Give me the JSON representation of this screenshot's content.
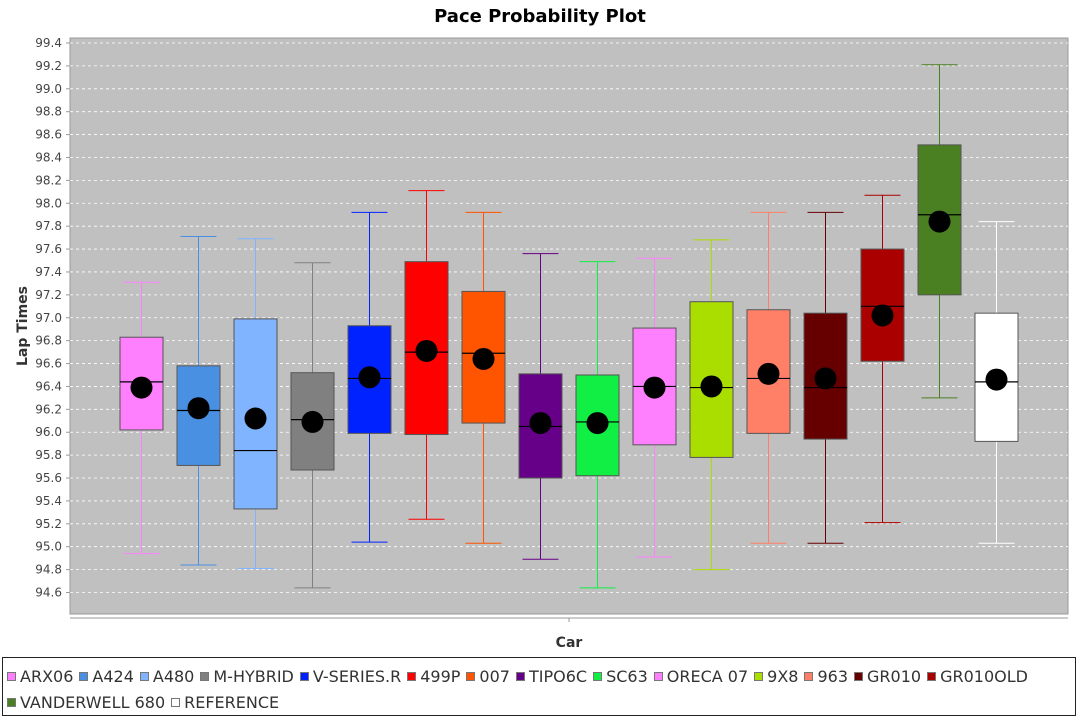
{
  "chart_data": {
    "type": "box",
    "title": "Pace Probability Plot",
    "xlabel": "Car",
    "ylabel": "Lap Times",
    "ylim": [
      94.4,
      99.4
    ],
    "yticks": [
      "94.6",
      "94.8",
      "95.0",
      "95.2",
      "95.4",
      "95.6",
      "95.8",
      "96.0",
      "96.2",
      "96.4",
      "96.6",
      "96.8",
      "97.0",
      "97.2",
      "97.4",
      "97.6",
      "97.8",
      "98.0",
      "98.2",
      "98.4",
      "98.6",
      "98.8",
      "99.0",
      "99.2",
      "99.4"
    ],
    "grid": true,
    "legend_position": "bottom",
    "series": [
      {
        "name": "ARX06",
        "color": "#ff80ff",
        "whisker_low": 94.94,
        "q1": 96.02,
        "median": 96.44,
        "q3": 96.83,
        "whisker_high": 97.31,
        "mean": 96.39
      },
      {
        "name": "A424",
        "color": "#4a90e2",
        "whisker_low": 94.84,
        "q1": 95.71,
        "median": 96.19,
        "q3": 96.58,
        "whisker_high": 97.71,
        "mean": 96.21
      },
      {
        "name": "A480",
        "color": "#80b4ff",
        "whisker_low": 94.81,
        "q1": 95.33,
        "median": 95.84,
        "q3": 96.99,
        "whisker_high": 97.69,
        "mean": 96.12
      },
      {
        "name": "M-HYBRID",
        "color": "#808080",
        "whisker_low": 94.64,
        "q1": 95.67,
        "median": 96.11,
        "q3": 96.52,
        "whisker_high": 97.48,
        "mean": 96.09
      },
      {
        "name": "V-SERIES.R",
        "color": "#0022ff",
        "whisker_low": 95.04,
        "q1": 95.99,
        "median": 96.47,
        "q3": 96.93,
        "whisker_high": 97.92,
        "mean": 96.48
      },
      {
        "name": "499P",
        "color": "#ff0000",
        "whisker_low": 95.24,
        "q1": 95.98,
        "median": 96.7,
        "q3": 97.49,
        "whisker_high": 98.11,
        "mean": 96.71
      },
      {
        "name": "007",
        "color": "#ff5500",
        "whisker_low": 95.03,
        "q1": 96.08,
        "median": 96.69,
        "q3": 97.23,
        "whisker_high": 97.92,
        "mean": 96.64
      },
      {
        "name": "TIPO6C",
        "color": "#660088",
        "whisker_low": 94.89,
        "q1": 95.6,
        "median": 96.05,
        "q3": 96.51,
        "whisker_high": 97.56,
        "mean": 96.08
      },
      {
        "name": "SC63",
        "color": "#11ee44",
        "whisker_low": 94.64,
        "q1": 95.62,
        "median": 96.09,
        "q3": 96.5,
        "whisker_high": 97.49,
        "mean": 96.08
      },
      {
        "name": "ORECA 07",
        "color": "#ff80ff",
        "whisker_low": 94.91,
        "q1": 95.89,
        "median": 96.4,
        "q3": 96.91,
        "whisker_high": 97.52,
        "mean": 96.39
      },
      {
        "name": "9X8",
        "color": "#aadd00",
        "whisker_low": 94.8,
        "q1": 95.78,
        "median": 96.39,
        "q3": 97.14,
        "whisker_high": 97.68,
        "mean": 96.4
      },
      {
        "name": "963",
        "color": "#ff8066",
        "whisker_low": 95.03,
        "q1": 95.99,
        "median": 96.47,
        "q3": 97.07,
        "whisker_high": 97.92,
        "mean": 96.51
      },
      {
        "name": "GR010",
        "color": "#660000",
        "whisker_low": 95.03,
        "q1": 95.94,
        "median": 96.39,
        "q3": 97.04,
        "whisker_high": 97.92,
        "mean": 96.47
      },
      {
        "name": "GR010OLD",
        "color": "#aa0000",
        "whisker_low": 95.21,
        "q1": 96.62,
        "median": 97.1,
        "q3": 97.6,
        "whisker_high": 98.07,
        "mean": 97.02
      },
      {
        "name": "VANDERWELL 680",
        "color": "#4a7f22",
        "whisker_low": 96.3,
        "q1": 97.2,
        "median": 97.9,
        "q3": 98.51,
        "whisker_high": 99.21,
        "mean": 97.84
      },
      {
        "name": "REFERENCE",
        "color": "#ffffff",
        "whisker_low": 95.03,
        "q1": 95.92,
        "median": 96.44,
        "q3": 97.04,
        "whisker_high": 97.84,
        "mean": 96.46
      }
    ]
  }
}
